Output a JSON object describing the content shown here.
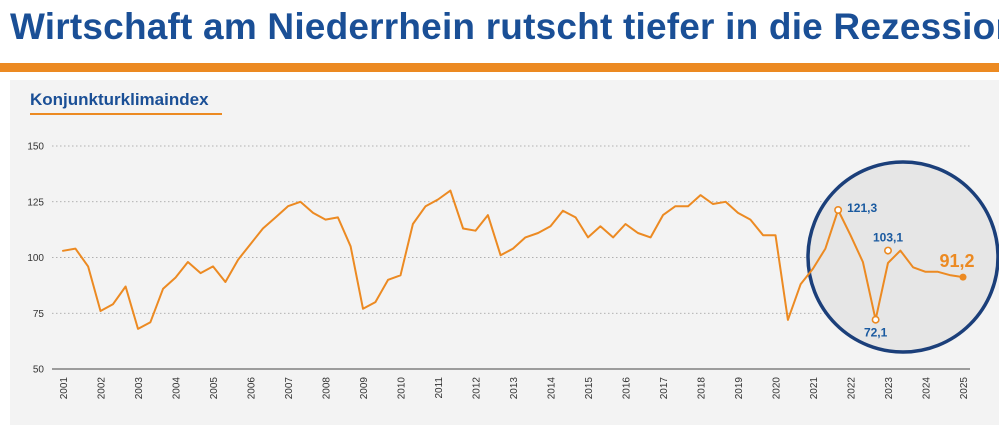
{
  "headline": "Wirtschaft am Niederrhein rutscht tiefer in die Rezession",
  "chart_data": {
    "type": "line",
    "title": "Konjunkturklimaindex",
    "xlabel": "",
    "ylabel": "",
    "ylim": [
      50,
      150
    ],
    "yticks": [
      "150",
      "125",
      "100",
      "75",
      "50"
    ],
    "ytick_values": [
      150,
      125,
      100,
      75,
      50
    ],
    "xlim": [
      2001,
      2025
    ],
    "xticks": [
      "2001",
      "2002",
      "2003",
      "2004",
      "2005",
      "2006",
      "2007",
      "2008",
      "2009",
      "2010",
      "2011",
      "2012",
      "2013",
      "2014",
      "2015",
      "2016",
      "2017",
      "2018",
      "2019",
      "2020",
      "2021",
      "2022",
      "2023",
      "2024",
      "2025"
    ],
    "grid": "horizontal dotted",
    "series": [
      {
        "color": "#ec8a22",
        "x": [
          2001.0,
          2001.33,
          2001.67,
          2002.0,
          2002.33,
          2002.67,
          2003.0,
          2003.33,
          2003.67,
          2004.0,
          2004.33,
          2004.67,
          2005.0,
          2005.33,
          2005.67,
          2006.0,
          2006.33,
          2006.67,
          2007.0,
          2007.33,
          2007.67,
          2008.0,
          2008.33,
          2008.67,
          2009.0,
          2009.33,
          2009.67,
          2010.0,
          2010.33,
          2010.67,
          2011.0,
          2011.33,
          2011.67,
          2012.0,
          2012.33,
          2012.67,
          2013.0,
          2013.33,
          2013.67,
          2014.0,
          2014.33,
          2014.67,
          2015.0,
          2015.33,
          2015.67,
          2016.0,
          2016.33,
          2016.67,
          2017.0,
          2017.33,
          2017.67,
          2018.0,
          2018.33,
          2018.67,
          2019.0,
          2019.33,
          2019.67,
          2020.0,
          2020.33,
          2020.67,
          2021.0,
          2021.33,
          2021.67,
          2022.0,
          2022.33,
          2022.67,
          2023.0,
          2023.33,
          2023.67,
          2024.0,
          2024.33,
          2024.67,
          2025.0
        ],
        "values": [
          103,
          104,
          96,
          76,
          79,
          87,
          68,
          71,
          86,
          91,
          98,
          93,
          96,
          89,
          99,
          106,
          113,
          118,
          123,
          125,
          120,
          117,
          118,
          105,
          77,
          80,
          90,
          92,
          115,
          123,
          126,
          130,
          113,
          112,
          119,
          101,
          104,
          109,
          111,
          114,
          121,
          118,
          109,
          114,
          109,
          115,
          111,
          109,
          119,
          123,
          123,
          128,
          124,
          125,
          120,
          117,
          110,
          110,
          72,
          88,
          95,
          104,
          121.3,
          110,
          98,
          72.1,
          97.6,
          103.1,
          95.6,
          93.6,
          93.6,
          92,
          91.2
        ]
      }
    ],
    "annotations": [
      {
        "x": 2021.67,
        "y": 121.3,
        "text": "121,3"
      },
      {
        "x": 2023.0,
        "y": 103.1,
        "text": "103,1"
      },
      {
        "x": 2022.67,
        "y": 72.1,
        "text": "72,1"
      },
      {
        "x": 2025.0,
        "y": 91.2,
        "text": "91,2"
      }
    ]
  },
  "colors": {
    "line": "#ec8a22",
    "accent_blue": "#1a4f96",
    "circle_fill": "#e6e6e6",
    "circle_stroke": "#1b3f7a",
    "panel_bg": "#f3f3f3"
  }
}
